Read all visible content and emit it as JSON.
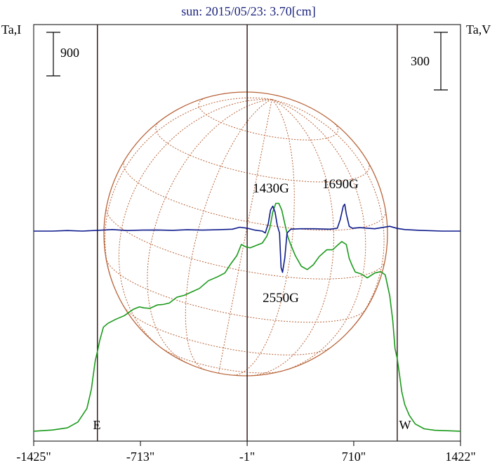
{
  "chart_data": {
    "type": "line",
    "title": "sun: 2015/05/23: 3.70[cm]",
    "left_axis_label": "Ta,I",
    "right_axis_label": "Ta,V",
    "left_scale_bar": "900",
    "right_scale_bar": "300",
    "xlim": [
      -1425,
      1422
    ],
    "x_tick_labels": [
      "-1425\"",
      "-713\"",
      "-1\"",
      "710\"",
      "1422\""
    ],
    "x_ticks": [
      -1425,
      -713,
      -1,
      710,
      1422
    ],
    "vertical_markers": [
      {
        "x": -1000,
        "label": "E"
      },
      {
        "x": -1
      },
      {
        "x": 1000,
        "label": "W"
      }
    ],
    "limb_labels": {
      "east": "E",
      "west": "W"
    },
    "annotations": [
      {
        "label": "1430G",
        "x": 170
      },
      {
        "label": "1690G",
        "x": 650
      },
      {
        "label": "2550G",
        "x": 225
      }
    ],
    "colors": {
      "intensity": "#1a9a1a",
      "polarization": "#0d1a8c",
      "disk_grid": "#b8643a",
      "markers": "#3a1f1f",
      "title": "#1a237e"
    },
    "series": [
      {
        "name": "Ta,I",
        "axis": "left",
        "x": [
          -1425,
          -1300,
          -1200,
          -1130,
          -1070,
          -1040,
          -1015,
          -1000,
          -985,
          -960,
          -930,
          -880,
          -820,
          -760,
          -720,
          -690,
          -650,
          -600,
          -560,
          -520,
          -470,
          -420,
          -370,
          -320,
          -260,
          -200,
          -150,
          -110,
          -70,
          -40,
          -10,
          20,
          60,
          100,
          130,
          150,
          170,
          190,
          210,
          230,
          250,
          270,
          290,
          320,
          360,
          400,
          440,
          480,
          530,
          570,
          600,
          630,
          660,
          680,
          700,
          720,
          760,
          800,
          850,
          890,
          920,
          950,
          970,
          985,
          1000,
          1015,
          1030,
          1050,
          1080,
          1120,
          1180,
          1250,
          1330,
          1422
        ],
        "y": [
          30,
          55,
          100,
          220,
          500,
          900,
          1480,
          1680,
          1900,
          2180,
          2260,
          2340,
          2420,
          2550,
          2600,
          2580,
          2570,
          2640,
          2650,
          2680,
          2800,
          2840,
          2910,
          2980,
          3140,
          3220,
          3300,
          3490,
          3660,
          3890,
          3840,
          3820,
          3870,
          3920,
          4060,
          4230,
          4560,
          4740,
          4740,
          4600,
          4320,
          4050,
          3880,
          3660,
          3440,
          3370,
          3470,
          3640,
          3780,
          3780,
          3870,
          3950,
          3890,
          3600,
          3450,
          3320,
          3280,
          3200,
          3300,
          3330,
          3260,
          2830,
          2320,
          1740,
          1530,
          1200,
          850,
          580,
          360,
          180,
          80,
          50,
          40,
          30
        ]
      },
      {
        "name": "Ta,V",
        "axis": "right",
        "x": [
          -1425,
          -1300,
          -1200,
          -1100,
          -1000,
          -900,
          -800,
          -700,
          -600,
          -500,
          -400,
          -300,
          -200,
          -100,
          -50,
          0,
          50,
          100,
          120,
          140,
          155,
          170,
          185,
          200,
          215,
          225,
          235,
          250,
          265,
          290,
          350,
          450,
          550,
          600,
          620,
          640,
          650,
          660,
          680,
          700,
          750,
          850,
          950,
          1000,
          1050,
          1150,
          1300,
          1422
        ],
        "y": [
          0,
          0,
          3,
          0,
          4,
          8,
          3,
          5,
          6,
          4,
          7,
          5,
          7,
          10,
          20,
          15,
          5,
          0,
          -10,
          40,
          110,
          130,
          100,
          30,
          -10,
          -190,
          -215,
          -140,
          -10,
          10,
          12,
          12,
          10,
          15,
          60,
          130,
          140,
          90,
          25,
          15,
          18,
          12,
          25,
          14,
          8,
          4,
          0,
          0
        ]
      }
    ]
  }
}
